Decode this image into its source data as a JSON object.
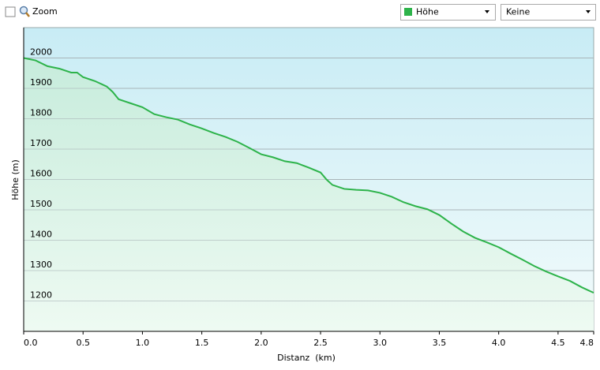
{
  "controls": {
    "zoom": "Zoom",
    "compare_select": "Keine"
  },
  "chart_data": {
    "type": "area",
    "xlabel": "Distanz  (km)",
    "ylabel": "Höhe (m)",
    "x": [
      0,
      0.1,
      0.2,
      0.3,
      0.4,
      0.45,
      0.5,
      0.6,
      0.7,
      0.75,
      0.8,
      0.9,
      1.0,
      1.1,
      1.2,
      1.3,
      1.4,
      1.5,
      1.6,
      1.7,
      1.8,
      1.9,
      2.0,
      2.1,
      2.2,
      2.3,
      2.4,
      2.5,
      2.55,
      2.6,
      2.7,
      2.8,
      2.9,
      3.0,
      3.1,
      3.2,
      3.3,
      3.4,
      3.5,
      3.6,
      3.7,
      3.8,
      3.9,
      4.0,
      4.1,
      4.2,
      4.3,
      4.4,
      4.5,
      4.6,
      4.7,
      4.8
    ],
    "series": [
      {
        "name": "Höhe",
        "color": "#2db34a",
        "values": [
          2000,
          1992,
          1973,
          1965,
          1952,
          1952,
          1937,
          1924,
          1906,
          1888,
          1864,
          1851,
          1838,
          1815,
          1805,
          1797,
          1781,
          1768,
          1753,
          1740,
          1724,
          1704,
          1683,
          1673,
          1660,
          1654,
          1639,
          1623,
          1600,
          1582,
          1569,
          1566,
          1564,
          1556,
          1543,
          1525,
          1512,
          1502,
          1483,
          1455,
          1429,
          1408,
          1393,
          1377,
          1356,
          1336,
          1315,
          1297,
          1281,
          1266,
          1245,
          1227
        ]
      }
    ],
    "xlim": [
      0,
      4.8
    ],
    "ylim": [
      1100,
      2100
    ],
    "xticks": [
      {
        "value": 0,
        "label": "0.0"
      },
      0.5,
      {
        "value": 1,
        "label": "1.0"
      },
      1.5,
      {
        "value": 2,
        "label": "2.0"
      },
      2.5,
      {
        "value": 3,
        "label": "3.0"
      },
      3.5,
      {
        "value": 4,
        "label": "4.0"
      },
      4.5,
      4.8
    ],
    "yticks": [
      1200,
      1300,
      1400,
      1500,
      1600,
      1700,
      1800,
      1900,
      2000
    ],
    "grid": true
  }
}
